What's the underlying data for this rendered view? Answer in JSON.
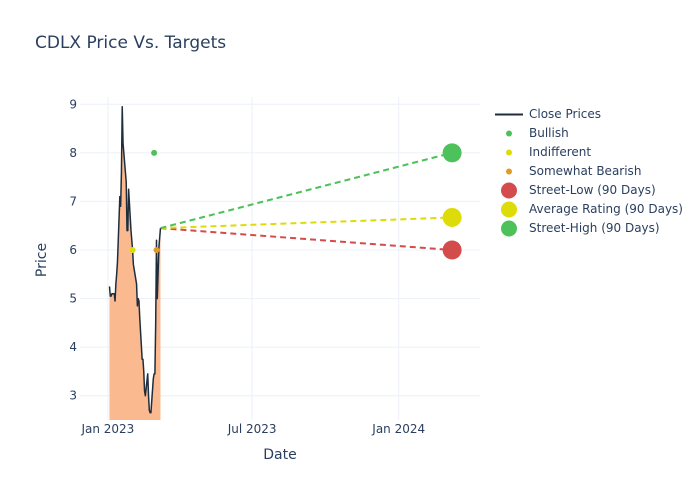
{
  "chart_data": {
    "type": "line",
    "title": "CDLX Price Vs. Targets",
    "xlabel": "Date",
    "ylabel": "Price",
    "grid": true,
    "legend_position": "right",
    "xlim": [
      "2022-11-27",
      "2024-04-12"
    ],
    "ylim": [
      2.5,
      9.15
    ],
    "x_ticks": [
      {
        "date": "2023-01-01",
        "label": "Jan 2023"
      },
      {
        "date": "2023-07-01",
        "label": "Jul 2023"
      },
      {
        "date": "2024-01-01",
        "label": "Jan 2024"
      }
    ],
    "y_ticks": [
      3,
      4,
      5,
      6,
      7,
      8,
      9
    ],
    "series": [
      {
        "name": "Close Prices",
        "kind": "line-with-fill",
        "color": "#1f2d3d",
        "fill_color": "#fbb98f",
        "points": [
          [
            "2023-01-03",
            5.25
          ],
          [
            "2023-01-04",
            5.05
          ],
          [
            "2023-01-05",
            5.05
          ],
          [
            "2023-01-06",
            5.1
          ],
          [
            "2023-01-09",
            5.1
          ],
          [
            "2023-01-10",
            4.95
          ],
          [
            "2023-01-11",
            5.3
          ],
          [
            "2023-01-12",
            5.5
          ],
          [
            "2023-01-13",
            5.75
          ],
          [
            "2023-01-16",
            7.1
          ],
          [
            "2023-01-17",
            6.9
          ],
          [
            "2023-01-18",
            7.6
          ],
          [
            "2023-01-19",
            8.95
          ],
          [
            "2023-01-20",
            8.2
          ],
          [
            "2023-01-23",
            7.6
          ],
          [
            "2023-01-24",
            7.4
          ],
          [
            "2023-01-25",
            6.4
          ],
          [
            "2023-01-26",
            6.4
          ],
          [
            "2023-01-27",
            7.25
          ],
          [
            "2023-01-30",
            6.4
          ],
          [
            "2023-01-31",
            6.2
          ],
          [
            "2023-02-01",
            6.0
          ],
          [
            "2023-02-02",
            5.7
          ],
          [
            "2023-02-03",
            5.6
          ],
          [
            "2023-02-06",
            5.3
          ],
          [
            "2023-02-07",
            4.85
          ],
          [
            "2023-02-08",
            5.0
          ],
          [
            "2023-02-09",
            4.95
          ],
          [
            "2023-02-10",
            4.6
          ],
          [
            "2023-02-13",
            3.75
          ],
          [
            "2023-02-14",
            3.75
          ],
          [
            "2023-02-15",
            3.5
          ],
          [
            "2023-02-16",
            3.1
          ],
          [
            "2023-02-17",
            3.0
          ],
          [
            "2023-02-20",
            3.45
          ],
          [
            "2023-02-21",
            3.0
          ],
          [
            "2023-02-22",
            2.7
          ],
          [
            "2023-02-23",
            2.65
          ],
          [
            "2023-02-24",
            2.65
          ],
          [
            "2023-02-27",
            3.35
          ],
          [
            "2023-02-28",
            3.45
          ],
          [
            "2023-03-01",
            3.45
          ],
          [
            "2023-03-02",
            4.5
          ],
          [
            "2023-03-03",
            6.2
          ],
          [
            "2023-03-04",
            5.0
          ],
          [
            "2023-03-06",
            6.05
          ],
          [
            "2023-03-07",
            6.25
          ],
          [
            "2023-03-08",
            6.45
          ]
        ]
      },
      {
        "name": "Bullish",
        "kind": "scatter",
        "color": "#4dc15a",
        "points": [
          [
            "2023-02-28",
            8.0
          ]
        ]
      },
      {
        "name": "Indifferent",
        "kind": "scatter",
        "color": "#dedc08",
        "points": [
          [
            "2023-02-01",
            6.0
          ]
        ]
      },
      {
        "name": "Somewhat Bearish",
        "kind": "scatter",
        "color": "#e29a24",
        "points": [
          [
            "2023-03-03",
            6.0
          ]
        ]
      },
      {
        "name": "Street-Low (90 Days)",
        "kind": "target",
        "color": "#d44b4b",
        "start": [
          "2023-03-08",
          6.45
        ],
        "end": [
          "2024-03-08",
          6.0
        ]
      },
      {
        "name": "Average Rating (90 Days)",
        "kind": "target",
        "color": "#dedc08",
        "start": [
          "2023-03-08",
          6.45
        ],
        "end": [
          "2024-03-08",
          6.67
        ]
      },
      {
        "name": "Street-High (90 Days)",
        "kind": "target",
        "color": "#4dc15a",
        "start": [
          "2023-03-08",
          6.45
        ],
        "end": [
          "2024-03-08",
          8.0
        ]
      }
    ]
  }
}
